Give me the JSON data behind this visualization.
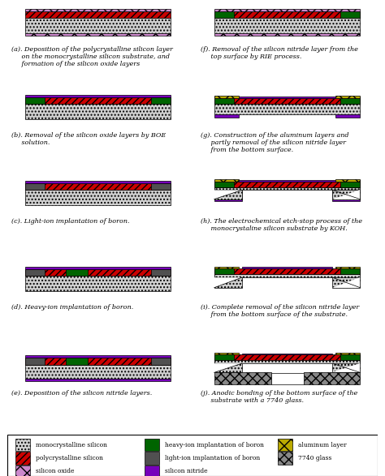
{
  "colors": {
    "mono_si": "#d0d0d0",
    "poly_si": "#cc0000",
    "sio2": "#cc88cc",
    "heavy_boron": "#006400",
    "light_boron": "#505050",
    "si_nitride": "#7700bb",
    "aluminum": "#bbaa00",
    "glass_7740": "#888888",
    "white": "#ffffff",
    "bg": "#ffffff"
  },
  "panels": [
    {
      "label": "(a). Deposition of the polycrystalline silicon layer\n     on the monocrystalline silicon substrate, and\n     formation of the silicon oxide layers",
      "type": "a"
    },
    {
      "label": "(f). Removal of the silicon nitride layer from the\n     top surface by RIE process.",
      "type": "f"
    },
    {
      "label": "(b). Removal of the silicon oxide layers by BOE\n     solution.",
      "type": "b"
    },
    {
      "label": "(g). Construction of the aluminum layers and\n     partly removal of the silicon nitride layer\n     from the bottom surface.",
      "type": "g"
    },
    {
      "label": "(c). Light-ion implantation of boron.",
      "type": "c"
    },
    {
      "label": "(h). The electrochemical etch-stop process of the\n     monocrystaline silicon substrate by KOH.",
      "type": "h"
    },
    {
      "label": "(d). Heavy-ion implantation of boron.",
      "type": "d"
    },
    {
      "label": "(i). Complete removal of the silicon nitride layer\n     from the bottom surface of the substrate.",
      "type": "i"
    },
    {
      "label": "(e). Deposition of the silicon nitride layers.",
      "type": "e"
    },
    {
      "label": "(j). Anodic bonding of the bottom surface of the\n     substrate with a 7740 glass.",
      "type": "j"
    }
  ]
}
